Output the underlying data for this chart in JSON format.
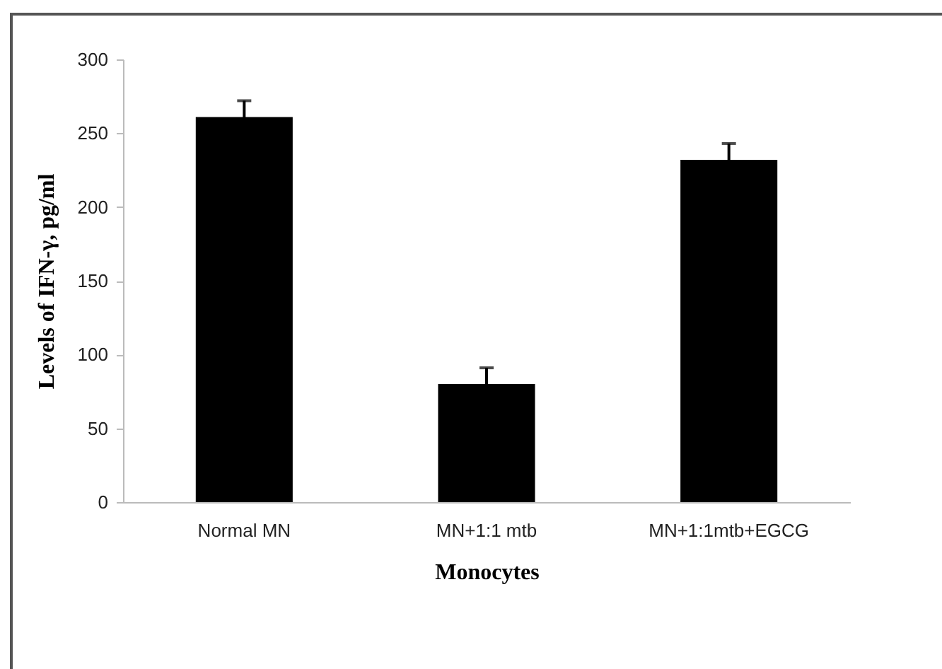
{
  "chart_data": {
    "type": "bar",
    "xlabel": "Monocytes",
    "ylabel": "Levels of IFN-γ, pg/ml",
    "categories": [
      "Normal MN",
      "MN+1:1 mtb",
      "MN+1:1mtb+EGCG"
    ],
    "values": [
      261,
      80,
      232
    ],
    "errors": [
      11,
      11,
      11
    ],
    "color": "#000000",
    "ylim": [
      0,
      300
    ],
    "yticks": [
      0,
      50,
      100,
      150,
      200,
      250,
      300
    ],
    "grid": false
  }
}
